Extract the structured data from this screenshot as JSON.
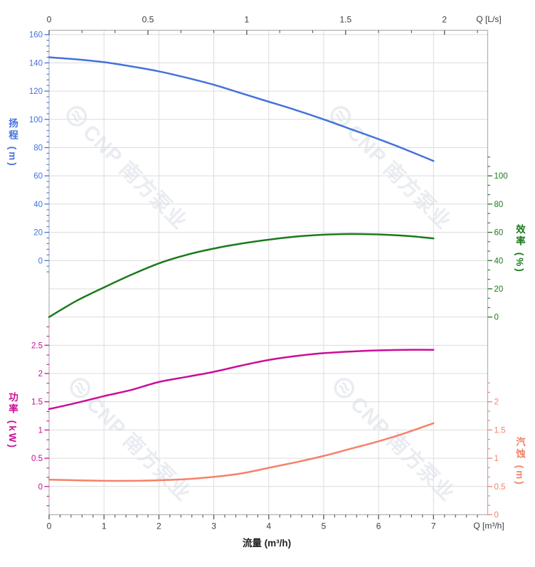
{
  "watermark": {
    "text": "CNP 南方泵业",
    "color": "#e9ecf1"
  },
  "axes": {
    "top": {
      "label": "Q [L/s]",
      "ticks": [
        0,
        0.5,
        1,
        1.5,
        2
      ]
    },
    "bottom": {
      "label": "Q [m³/h]",
      "title": "流量 (m³/h)",
      "ticks": [
        0,
        1,
        2,
        3,
        4,
        5,
        6,
        7
      ]
    },
    "head": {
      "title": "扬程 (m)",
      "color": "#4472db",
      "ticks": [
        160,
        140,
        120,
        100,
        80,
        60,
        40,
        20,
        0
      ]
    },
    "efficiency": {
      "title": "效率 (%)",
      "color": "#1a7a1a",
      "ticks": [
        100,
        80,
        60,
        40,
        20,
        0
      ]
    },
    "power": {
      "title": "功率 (kW)",
      "color": "#cb0e96",
      "ticks": [
        2.5,
        2,
        1.5,
        1,
        0.5,
        0
      ]
    },
    "npsh": {
      "title": "汽蚀 (m)",
      "color": "#f48268",
      "ticks": [
        2,
        1.5,
        1,
        0.5,
        0
      ]
    }
  },
  "chart_data": {
    "type": "line",
    "title": "",
    "x_axis": {
      "bottom_label": "流量 (m³/h)",
      "bottom_range": [
        0,
        7
      ],
      "top_label": "Q [L/s]",
      "top_range": [
        0,
        2
      ]
    },
    "grid": true,
    "legend": false,
    "x": [
      0,
      0.5,
      1,
      1.5,
      2,
      2.5,
      3,
      3.5,
      4,
      4.5,
      5,
      5.5,
      6,
      6.5,
      7
    ],
    "series": [
      {
        "name": "扬程",
        "unit": "m",
        "axis": "head",
        "color": "#4472db",
        "axis_range": [
          0,
          160
        ],
        "values": [
          144,
          142.5,
          140.5,
          137.5,
          134,
          129.5,
          124.5,
          118.5,
          112.5,
          106.5,
          100,
          93,
          86,
          78.5,
          70.5
        ]
      },
      {
        "name": "效率",
        "unit": "%",
        "axis": "efficiency",
        "color": "#1a7a1a",
        "axis_range": [
          0,
          100
        ],
        "values": [
          0,
          11.5,
          21,
          30,
          38,
          44,
          48.5,
          52,
          54.8,
          57,
          58.3,
          58.8,
          58.5,
          57.5,
          55.7
        ]
      },
      {
        "name": "功率",
        "unit": "kW",
        "axis": "power",
        "color": "#cb0e96",
        "axis_range": [
          0,
          2.5
        ],
        "values": [
          1.37,
          1.48,
          1.6,
          1.71,
          1.85,
          1.94,
          2.03,
          2.14,
          2.24,
          2.31,
          2.36,
          2.39,
          2.41,
          2.42,
          2.42
        ]
      },
      {
        "name": "汽蚀",
        "unit": "m",
        "axis": "npsh",
        "color": "#f48268",
        "axis_range": [
          0,
          2
        ],
        "values": [
          0.62,
          0.61,
          0.6,
          0.6,
          0.61,
          0.63,
          0.67,
          0.73,
          0.83,
          0.93,
          1.04,
          1.17,
          1.3,
          1.45,
          1.62
        ]
      }
    ]
  }
}
